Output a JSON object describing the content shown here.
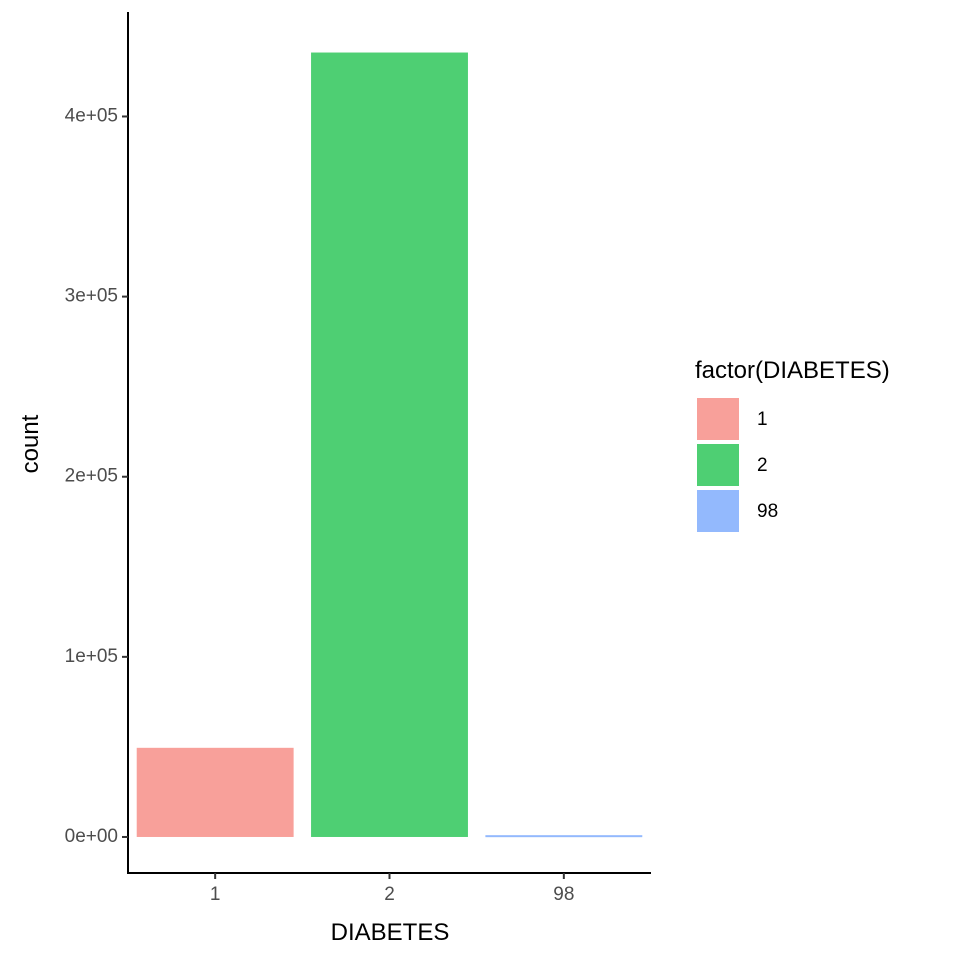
{
  "chart_data": {
    "type": "bar",
    "categories": [
      "1",
      "2",
      "98"
    ],
    "values": [
      49500,
      435500,
      1000
    ],
    "colors": [
      "#F8A09A",
      "#4ECF73",
      "#93B9FD"
    ],
    "xlabel": "DIABETES",
    "ylabel": "count",
    "ylim": [
      -20000,
      458000
    ],
    "yticks": [
      0,
      100000,
      200000,
      300000,
      400000
    ],
    "ytick_labels": [
      "0e+00",
      "1e+05",
      "2e+05",
      "3e+05",
      "4e+05"
    ],
    "grid": false,
    "legend": {
      "title": "factor(DIABETES)",
      "placement": "right",
      "entries": [
        "1",
        "2",
        "98"
      ]
    }
  }
}
